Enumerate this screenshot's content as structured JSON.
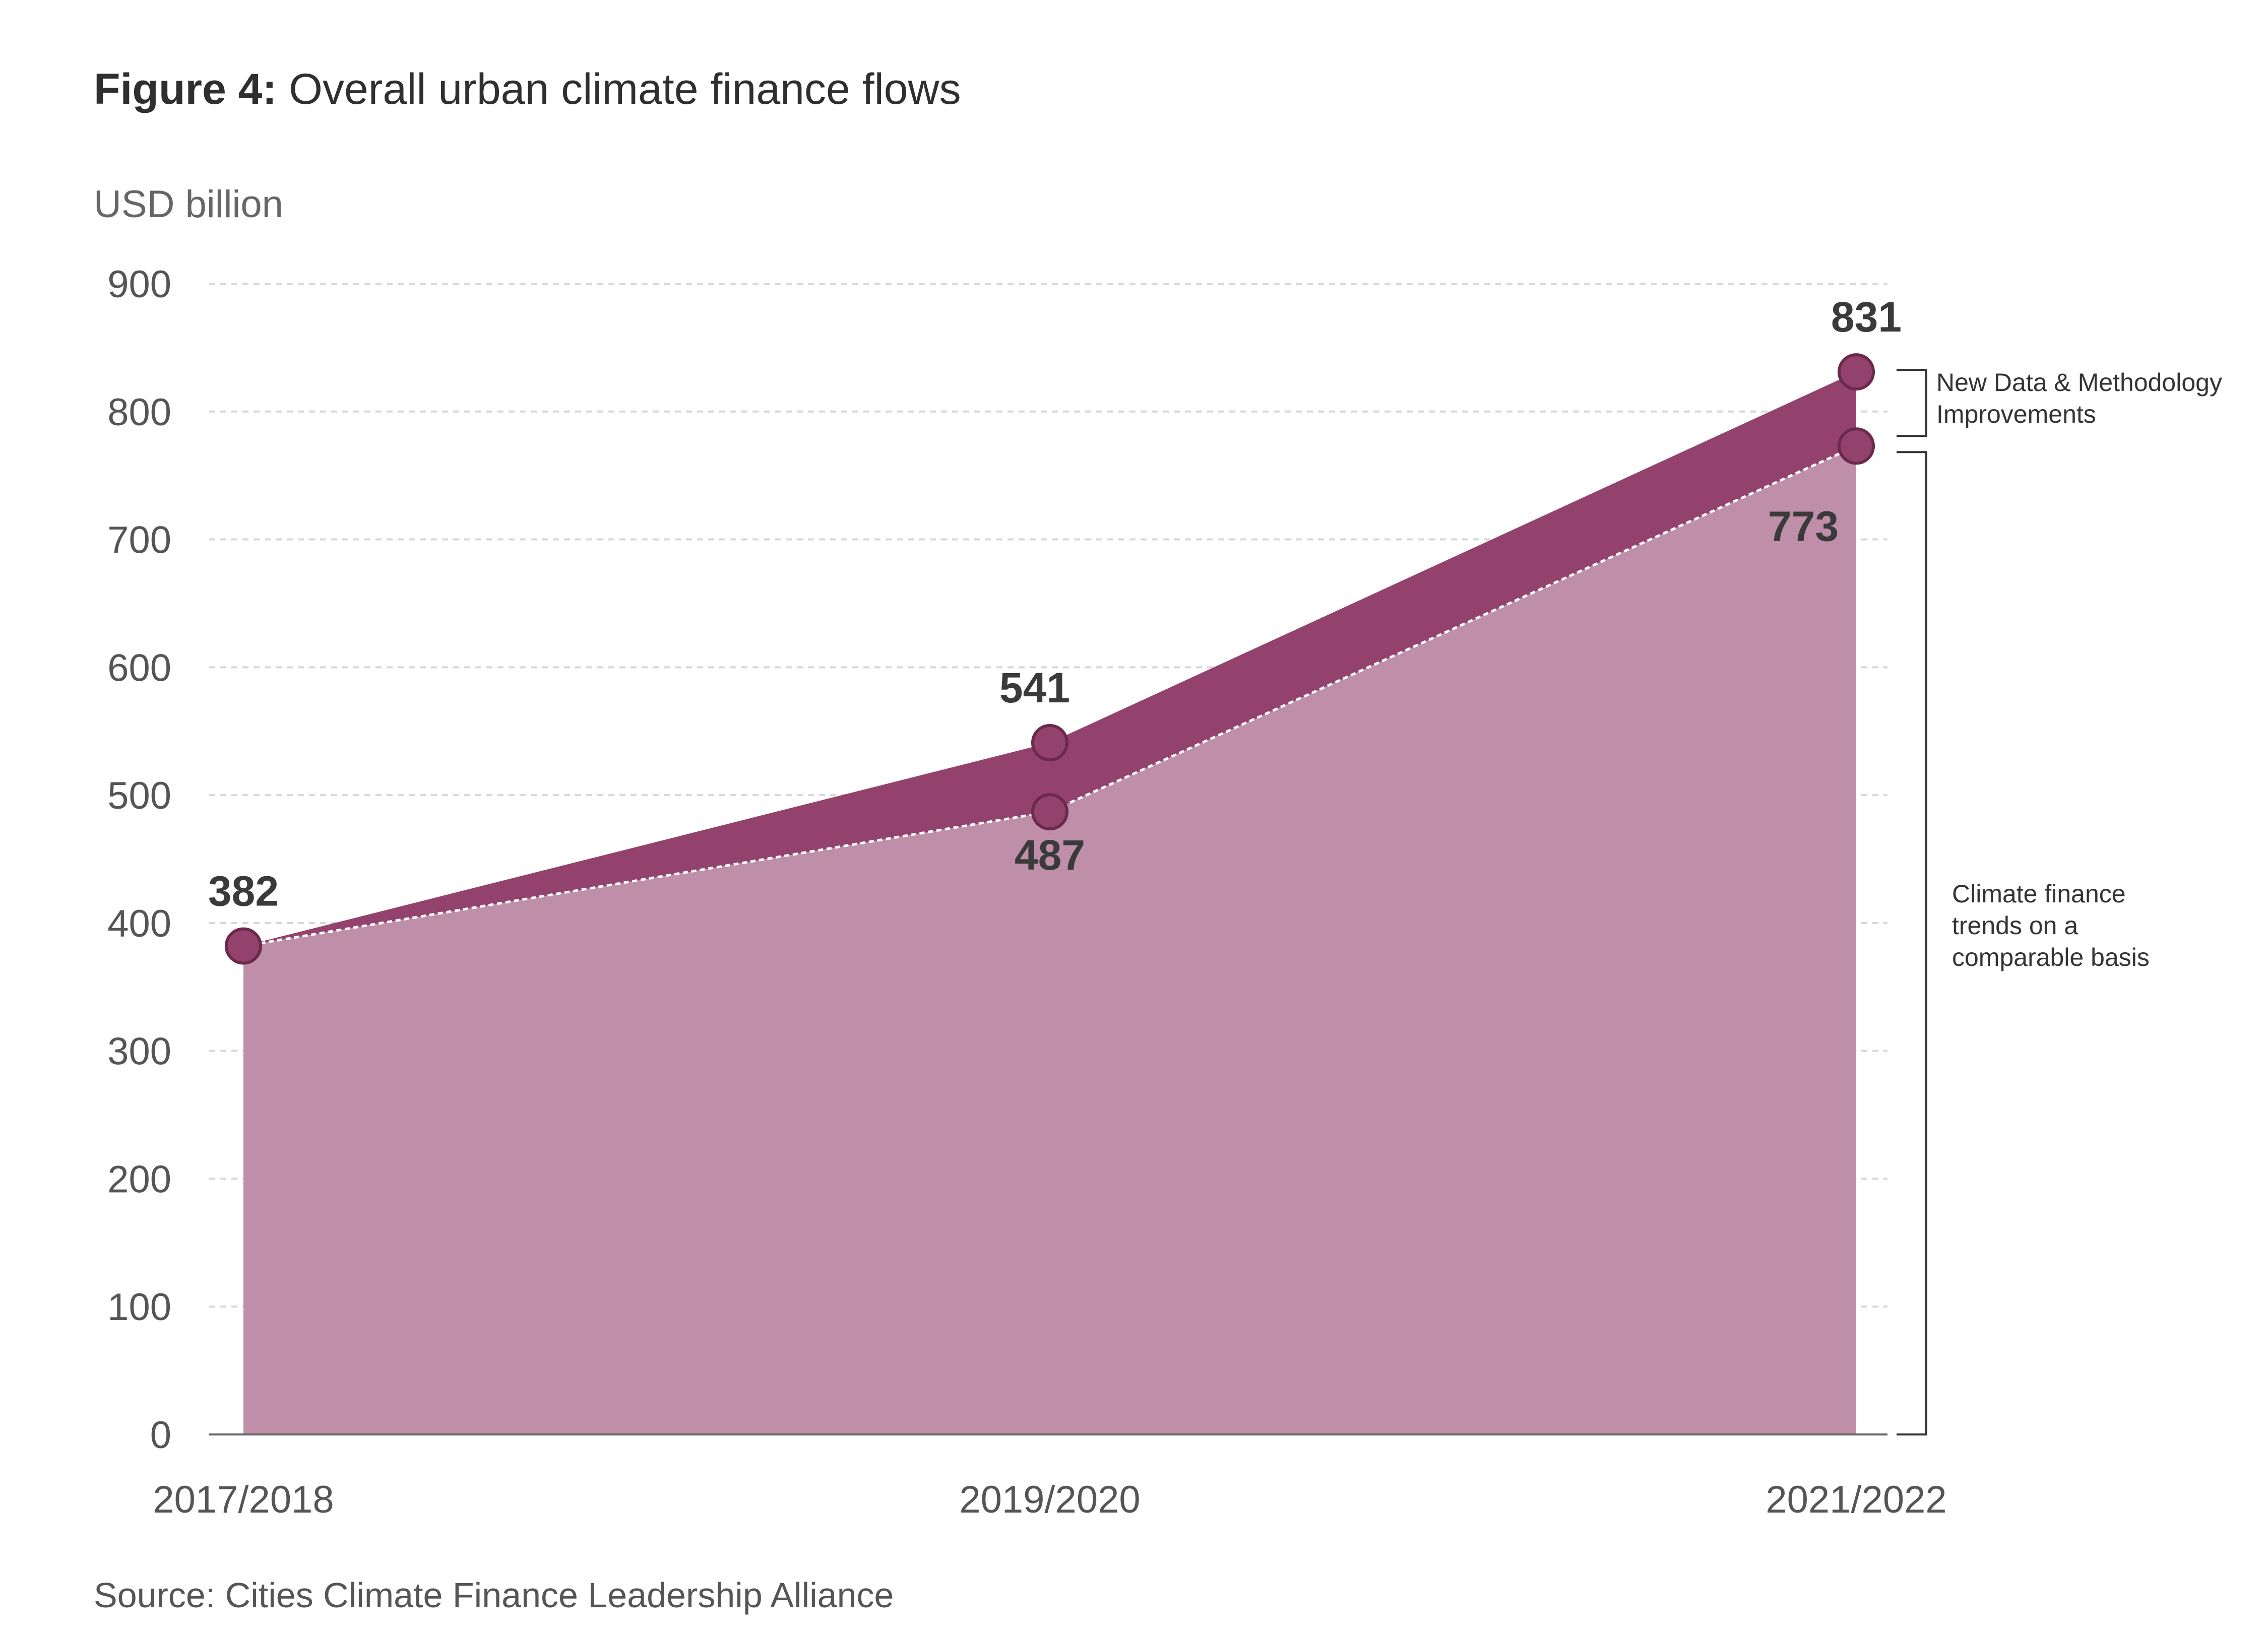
{
  "figure": {
    "label": "Figure 4:",
    "title": "Overall urban climate finance flows",
    "source": "Source: Cities Climate Finance Leadership Alliance"
  },
  "colors": {
    "dark_area": "#93426d",
    "light_area": "#bf8ea9",
    "marker_fill": "#93426d",
    "marker_stroke": "#6b2a4c",
    "grid": "#d7d7d7",
    "text": "#3a3a3a"
  },
  "chart_data": {
    "type": "area",
    "title": "Overall urban climate finance flows",
    "ylabel": "USD billion",
    "xlabel": "",
    "categories": [
      "2017/2018",
      "2019/2020",
      "2021/2022"
    ],
    "ylim": [
      0,
      900
    ],
    "yticks": [
      0,
      100,
      200,
      300,
      400,
      500,
      600,
      700,
      800,
      900
    ],
    "grid": true,
    "series": [
      {
        "values": [
          382,
          541,
          831
        ],
        "data_labels": [
          "382",
          "541",
          "831"
        ]
      },
      {
        "values": [
          382,
          487,
          773
        ],
        "data_labels": [
          "",
          "487",
          "773"
        ]
      }
    ],
    "annotations": [
      {
        "text_lines": [
          "New Data & Methodology",
          "Improvements"
        ],
        "range": [
          773,
          831
        ]
      },
      {
        "text_lines": [
          "Climate finance",
          "trends on a",
          "comparable basis"
        ],
        "range": [
          0,
          773
        ]
      }
    ]
  }
}
